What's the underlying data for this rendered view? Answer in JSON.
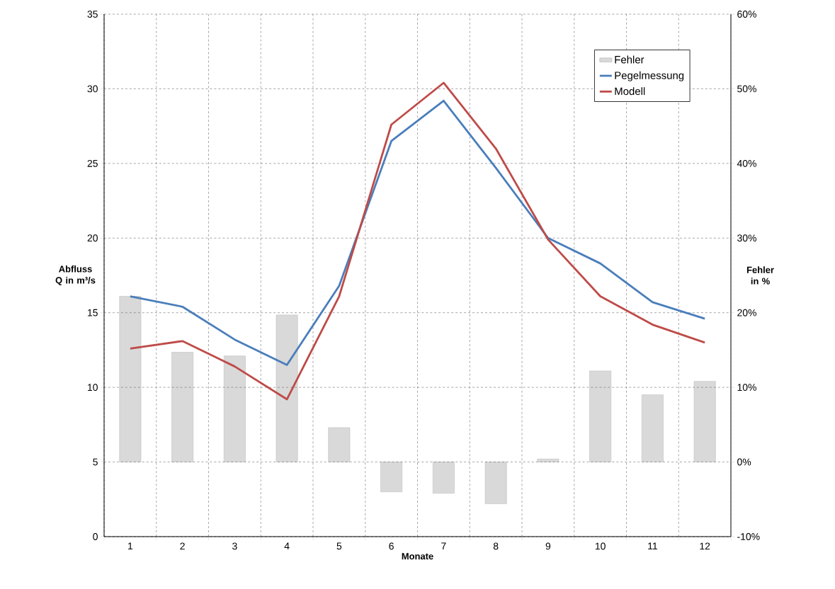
{
  "chart_data": {
    "type": "line",
    "xlabel": "Monate",
    "ylabel": "Abfluss Q in m³/s",
    "y2label": "Fehler in %",
    "categories": [
      "1",
      "2",
      "3",
      "4",
      "5",
      "6",
      "7",
      "8",
      "9",
      "10",
      "11",
      "12"
    ],
    "series": [
      {
        "name": "Fehler",
        "type": "bar",
        "axis": "y2",
        "color": "#d9d9d9",
        "values": [
          22.2,
          14.7,
          14.2,
          19.7,
          4.6,
          -4.0,
          -4.2,
          -5.6,
          0.4,
          12.2,
          9.0,
          10.8
        ]
      },
      {
        "name": "Pegelmessung",
        "color": "#4a7ebb",
        "values": [
          16.1,
          15.4,
          13.2,
          11.5,
          16.8,
          26.5,
          29.2,
          24.7,
          20.0,
          18.3,
          15.7,
          14.6
        ]
      },
      {
        "name": "Modell",
        "color": "#be4b48",
        "values": [
          12.6,
          13.1,
          11.4,
          9.2,
          16.1,
          27.6,
          30.4,
          26.0,
          19.9,
          16.1,
          14.2,
          13.0
        ]
      }
    ],
    "ylim": [
      0,
      35
    ],
    "yticks": [
      0,
      5,
      10,
      15,
      20,
      25,
      30,
      35
    ],
    "y2lim": [
      -10,
      60
    ],
    "y2ticks": [
      {
        "value": -10,
        "label": "-10%"
      },
      {
        "value": 0,
        "label": "0%"
      },
      {
        "value": 10,
        "label": "10%"
      },
      {
        "value": 20,
        "label": "20%"
      },
      {
        "value": 30,
        "label": "30%"
      },
      {
        "value": 40,
        "label": "40%"
      },
      {
        "value": 50,
        "label": "50%"
      },
      {
        "value": 60,
        "label": "60%"
      }
    ],
    "grid": true,
    "legend": "top right",
    "marker": "none",
    "line_style": "solid"
  }
}
